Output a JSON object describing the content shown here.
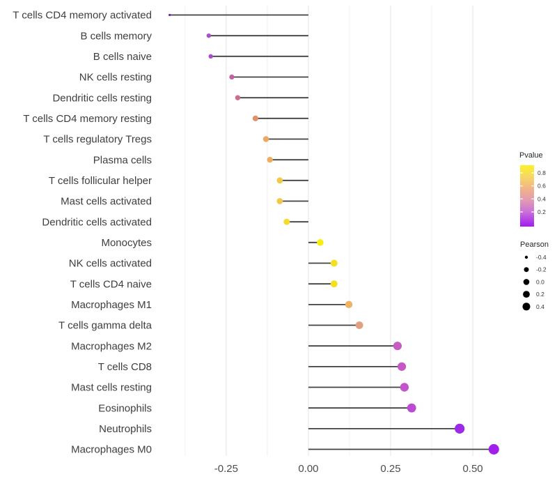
{
  "chart_data": {
    "type": "lollipop",
    "orientation": "horizontal",
    "title": "",
    "xlabel": "",
    "ylabel": "",
    "xlim": [
      -0.47,
      0.61
    ],
    "grid": true,
    "x_ticks": [
      -0.25,
      0.0,
      0.25,
      0.5
    ],
    "x_tick_labels": [
      "-0.25",
      "0.00",
      "0.25",
      "0.50"
    ],
    "grid_minor": [
      -0.375,
      -0.125,
      0.125,
      0.375
    ],
    "stem_color": "#404040",
    "rows": [
      {
        "label": "T cells CD4 memory activated",
        "pearson": -0.422,
        "color": "#6E21B5",
        "r": 1.6
      },
      {
        "label": "B cells memory",
        "pearson": -0.303,
        "color": "#A94FC7",
        "r": 3.2
      },
      {
        "label": "B cells naive",
        "pearson": -0.297,
        "color": "#AB4BCB",
        "r": 3.2
      },
      {
        "label": "NK cells resting",
        "pearson": -0.233,
        "color": "#C75FA5",
        "r": 3.6
      },
      {
        "label": "Dendritic cells resting",
        "pearson": -0.215,
        "color": "#CD6C90",
        "r": 3.7
      },
      {
        "label": "T cells CD4 memory resting",
        "pearson": -0.161,
        "color": "#E1906A",
        "r": 4.1
      },
      {
        "label": "T cells regulatory  Tregs",
        "pearson": -0.129,
        "color": "#ECA95F",
        "r": 4.2
      },
      {
        "label": "Plasma cells",
        "pearson": -0.117,
        "color": "#EDAE5C",
        "r": 4.2
      },
      {
        "label": "T cells follicular helper",
        "pearson": -0.087,
        "color": "#F2C847",
        "r": 4.4
      },
      {
        "label": "Mast cells activated",
        "pearson": -0.087,
        "color": "#F2C847",
        "r": 4.4
      },
      {
        "label": "Dendritic cells activated",
        "pearson": -0.066,
        "color": "#F5DC2C",
        "r": 4.5
      },
      {
        "label": "Monocytes",
        "pearson": 0.036,
        "color": "#F7EE09",
        "r": 4.8
      },
      {
        "label": "NK cells activated",
        "pearson": 0.078,
        "color": "#F4E022",
        "r": 5.0
      },
      {
        "label": "T cells CD4 naive",
        "pearson": 0.078,
        "color": "#F4E022",
        "r": 5.0
      },
      {
        "label": "Macrophages M1",
        "pearson": 0.123,
        "color": "#EDB468",
        "r": 5.2
      },
      {
        "label": "T cells gamma delta",
        "pearson": 0.155,
        "color": "#E2A083",
        "r": 5.4
      },
      {
        "label": "Macrophages M2",
        "pearson": 0.271,
        "color": "#C65BC2",
        "r": 6.1
      },
      {
        "label": "T cells CD8",
        "pearson": 0.284,
        "color": "#C557C6",
        "r": 6.1
      },
      {
        "label": "Mast cells resting",
        "pearson": 0.292,
        "color": "#C354C9",
        "r": 6.2
      },
      {
        "label": "Eosinophils",
        "pearson": 0.314,
        "color": "#BD4AD4",
        "r": 6.4
      },
      {
        "label": "Neutrophils",
        "pearson": 0.46,
        "color": "#9C2BE9",
        "r": 7.1
      },
      {
        "label": "Macrophages M0",
        "pearson": 0.564,
        "color": "#A21EEA",
        "r": 7.5
      }
    ],
    "color_legend": {
      "title": "Pvalue",
      "labels": [
        "0.8",
        "0.6",
        "0.4",
        "0.2"
      ],
      "gradient": [
        {
          "offset": 0.0,
          "color": "#FBF228"
        },
        {
          "offset": 0.2,
          "color": "#F7D568"
        },
        {
          "offset": 0.4,
          "color": "#EFB18C"
        },
        {
          "offset": 0.57,
          "color": "#E29BB2"
        },
        {
          "offset": 0.75,
          "color": "#CB74D6"
        },
        {
          "offset": 1.0,
          "color": "#A21DF2"
        }
      ]
    },
    "size_legend": {
      "title": "Pearson",
      "labels": [
        "-0.4",
        "-0.2",
        "0.0",
        "0.2",
        "0.4"
      ],
      "radii": [
        2.2,
        3.5,
        4.3,
        4.9,
        5.5
      ],
      "dot_color": "#000000"
    }
  }
}
